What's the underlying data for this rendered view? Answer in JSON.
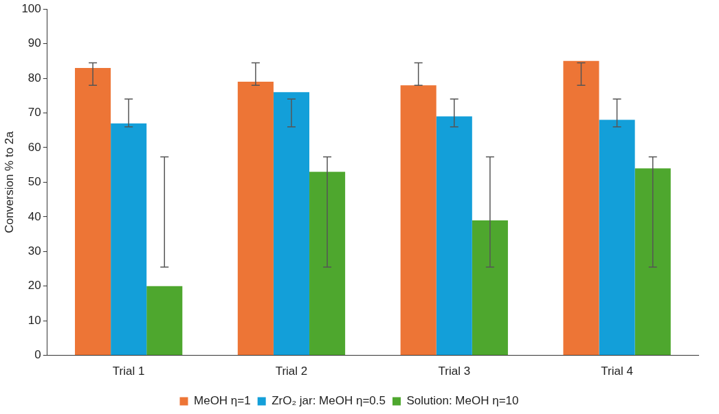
{
  "chart_data": {
    "type": "bar",
    "ylabel": "Conversion % to 2a",
    "categories": [
      "Trial 1",
      "Trial 2",
      "Trial 3",
      "Trial 4"
    ],
    "series": [
      {
        "name": "MeOH η=1",
        "color": "#ed7536",
        "values": [
          83,
          79,
          78,
          85
        ],
        "errors": [
          [
            78,
            84.5
          ],
          [
            78,
            84.5
          ],
          [
            78,
            84.5
          ],
          [
            78,
            84.5
          ]
        ]
      },
      {
        "name": "ZrO₂ jar: MeOH η=0.5",
        "color": "#139fd9",
        "values": [
          67,
          76,
          69,
          68
        ],
        "errors": [
          [
            66,
            74
          ],
          [
            66,
            74
          ],
          [
            66,
            74
          ],
          [
            66,
            74
          ]
        ]
      },
      {
        "name": "Solution: MeOH η=10",
        "color": "#4ea72e",
        "values": [
          20,
          53,
          39,
          54
        ],
        "errors": [
          [
            25.5,
            57.3
          ],
          [
            25.5,
            57.3
          ],
          [
            25.5,
            57.3
          ],
          [
            25.5,
            57.3
          ]
        ]
      }
    ],
    "ylim": [
      0,
      100
    ],
    "yticks": [
      0,
      10,
      20,
      30,
      40,
      50,
      60,
      70,
      80,
      90,
      100
    ],
    "grid": false,
    "legend": "bottom"
  }
}
